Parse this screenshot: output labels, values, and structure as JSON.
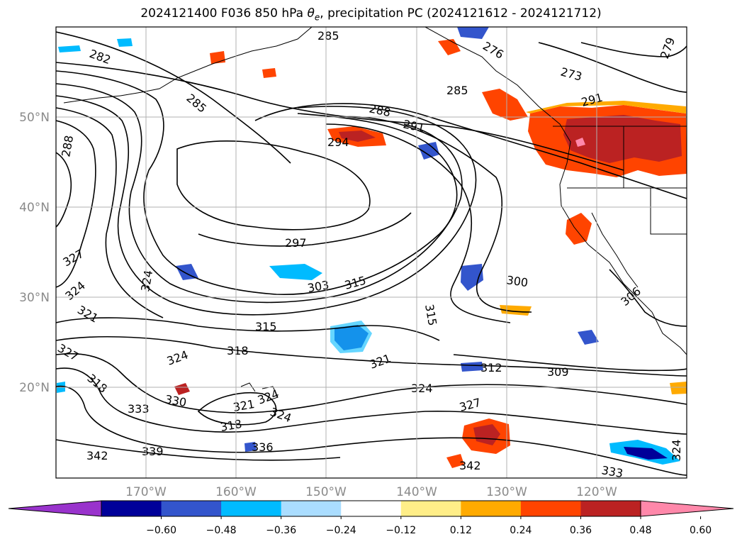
{
  "title": {
    "prefix": "2024121400 F036 850 hPa ",
    "theta_symbol": "θ",
    "theta_sub": "e",
    "suffix": ", precipitation PC (2024121612 - 2024121712)"
  },
  "axes": {
    "lon_labels": [
      "170°W",
      "160°W",
      "150°W",
      "140°W",
      "130°W",
      "120°W"
    ],
    "lat_labels": [
      "50°N",
      "40°N",
      "30°N",
      "20°N"
    ]
  },
  "colorbar": {
    "tick_labels": [
      "−0.60",
      "−0.48",
      "−0.36",
      "−0.24",
      "−0.12",
      "0.12",
      "0.24",
      "0.36",
      "0.48",
      "0.60"
    ],
    "colors": {
      "under": "#9933cc",
      "bins": [
        "#000099",
        "#3355cc",
        "#00bbff",
        "#aaddff",
        "#ffffff",
        "#ffee88",
        "#ffaa00",
        "#ff4400",
        "#bb2222"
      ],
      "over": "#ff88aa"
    }
  },
  "contour_labels": [
    "282",
    "285",
    "285",
    "285",
    "288",
    "288",
    "291",
    "291",
    "294",
    "297",
    "303",
    "315",
    "300",
    "306",
    "315",
    "315",
    "312",
    "309",
    "318",
    "321",
    "324",
    "324",
    "327",
    "327",
    "324",
    "321",
    "324",
    "324",
    "318",
    "318",
    "321",
    "330",
    "333",
    "336",
    "339",
    "342",
    "342",
    "333",
    "327",
    "324",
    "324",
    "279",
    "273",
    "276"
  ],
  "colors": {
    "contour": "#000000",
    "grid": "#b0b0b0",
    "coast": "#000000"
  }
}
